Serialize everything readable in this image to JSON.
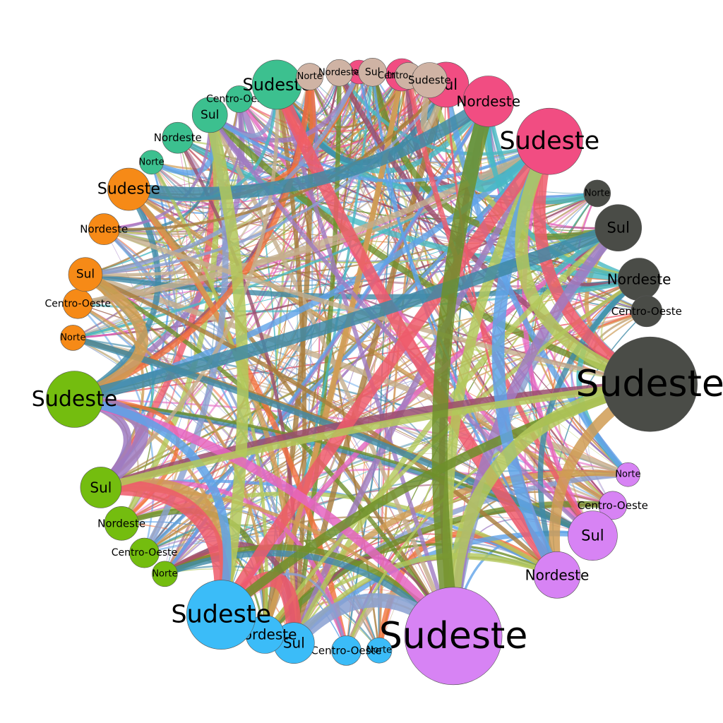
{
  "diagram": {
    "type": "chord-network",
    "groups": [
      {
        "id": "g-pink",
        "color": "#f14d82",
        "nodes": [
          {
            "label": "Norte",
            "size": 0.7
          },
          {
            "label": "Centro-Oeste",
            "size": 1.2
          },
          {
            "label": "Sul",
            "size": 1.9
          },
          {
            "label": "Nordeste",
            "size": 2.1
          },
          {
            "label": "Sudeste",
            "size": 4.0
          }
        ]
      },
      {
        "id": "g-dark",
        "color": "#4a4c47",
        "nodes": [
          {
            "label": "Norte",
            "size": 0.7
          },
          {
            "label": "Sul",
            "size": 2.1
          },
          {
            "label": "Nordeste",
            "size": 2.0
          },
          {
            "label": "Centro-Oeste",
            "size": 1.2
          },
          {
            "label": "Sudeste",
            "size": 4.5
          }
        ]
      },
      {
        "id": "g-violet",
        "color": "#d783f4",
        "nodes": [
          {
            "label": "Norte",
            "size": 0.6
          },
          {
            "label": "Centro-Oeste",
            "size": 0.9
          },
          {
            "label": "Sul",
            "size": 2.0
          },
          {
            "label": "Nordeste",
            "size": 1.9
          },
          {
            "label": "Sudeste",
            "size": 6.0
          }
        ]
      },
      {
        "id": "g-sky",
        "color": "#3bbcf8",
        "nodes": [
          {
            "label": "Norte",
            "size": 0.7
          },
          {
            "label": "Centro-Oeste",
            "size": 0.9
          },
          {
            "label": "Sul",
            "size": 1.6
          },
          {
            "label": "Nordeste",
            "size": 1.6
          },
          {
            "label": "Sudeste",
            "size": 4.0
          }
        ]
      },
      {
        "id": "g-green",
        "color": "#74bd0f",
        "nodes": [
          {
            "label": "Norte",
            "size": 0.7
          },
          {
            "label": "Centro-Oeste",
            "size": 1.0
          },
          {
            "label": "Nordeste",
            "size": 1.4
          },
          {
            "label": "Sul",
            "size": 1.7
          },
          {
            "label": "Sudeste",
            "size": 3.6
          }
        ]
      },
      {
        "id": "g-orange",
        "color": "#f68a17",
        "nodes": [
          {
            "label": "Norte",
            "size": 0.8
          },
          {
            "label": "Centro-Oeste",
            "size": 0.9
          },
          {
            "label": "Sul",
            "size": 1.5
          },
          {
            "label": "Nordeste",
            "size": 1.3
          },
          {
            "label": "Sudeste",
            "size": 2.3
          }
        ]
      },
      {
        "id": "g-teal",
        "color": "#3cc08f",
        "nodes": [
          {
            "label": "Norte",
            "size": 0.7
          },
          {
            "label": "Nordeste",
            "size": 1.3
          },
          {
            "label": "Sul",
            "size": 1.5
          },
          {
            "label": "Centro-Oeste",
            "size": 1.1
          },
          {
            "label": "Sudeste",
            "size": 2.6
          }
        ]
      },
      {
        "id": "g-tan",
        "color": "#cfb3a4",
        "nodes": [
          {
            "label": "Norte",
            "size": 1.0
          },
          {
            "label": "Nordeste",
            "size": 1.0
          },
          {
            "label": "Sul",
            "size": 1.2
          },
          {
            "label": "Centro-Oeste",
            "size": 1.2
          },
          {
            "label": "Sudeste",
            "size": 1.5
          }
        ]
      }
    ],
    "edge_colors": [
      "#9a4d6d",
      "#3f8aa6",
      "#f2703c",
      "#8aa0d1",
      "#e565c1",
      "#c4ae8c",
      "#6e8f2b",
      "#47b9c3",
      "#a77c3b",
      "#9f7bc2",
      "#ef5b6b",
      "#b3c85b",
      "#5fa3e8",
      "#d09c54"
    ]
  }
}
